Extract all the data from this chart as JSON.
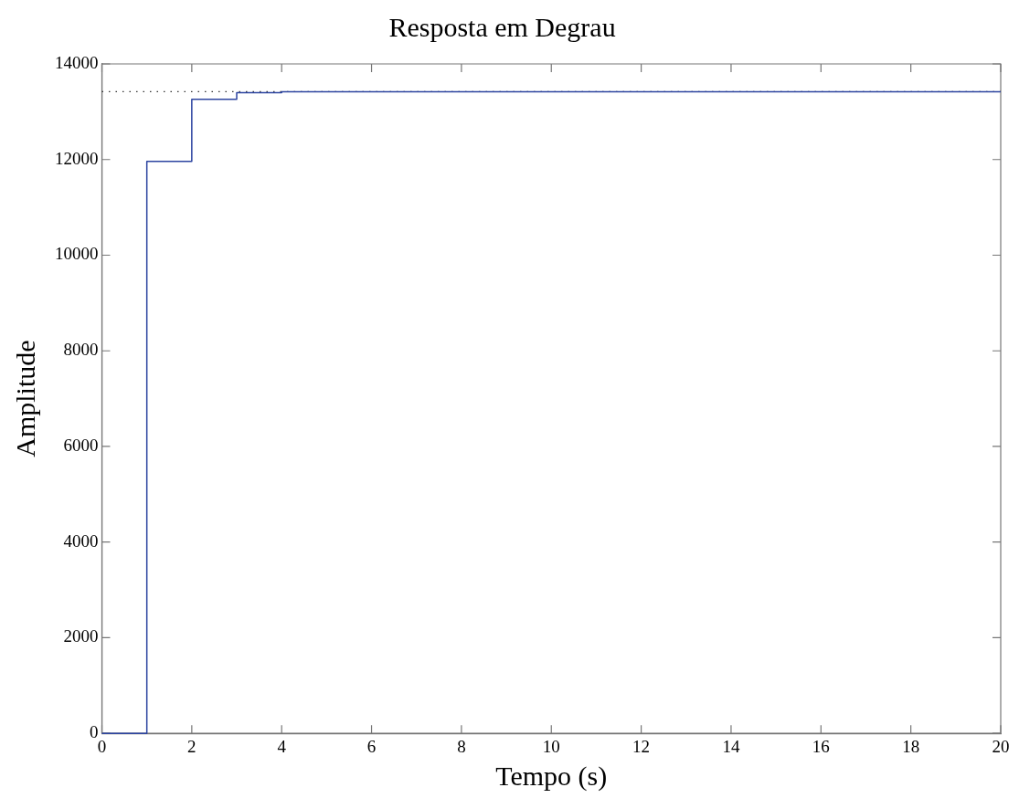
{
  "chart_data": {
    "type": "step",
    "title": "Resposta em Degrau",
    "xlabel": "Tempo (s)",
    "ylabel": "Amplitude",
    "x": [
      0,
      1,
      2,
      3,
      4,
      20
    ],
    "series": [
      {
        "color": "#2c44a0",
        "values": [
          0,
          11960,
          13260,
          13400,
          13420,
          13420
        ]
      }
    ],
    "xlim": [
      0,
      20
    ],
    "xticks": [
      0,
      2,
      4,
      6,
      8,
      10,
      12,
      14,
      16,
      18,
      20
    ],
    "ylim": [
      0,
      14000
    ],
    "yticks": [
      0,
      2000,
      4000,
      6000,
      8000,
      10000,
      12000,
      14000
    ],
    "ref_lines": [
      {
        "axis": "y",
        "value": 13420,
        "color": "#333333",
        "line_style": "dotted"
      }
    ],
    "grid": false,
    "legend": false,
    "marker": "none",
    "line_style": "solid"
  }
}
